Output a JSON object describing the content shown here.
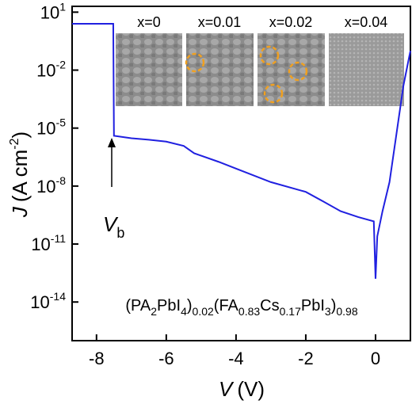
{
  "chart_data": {
    "type": "line",
    "x": [
      -8.7,
      -7.52,
      -7.5,
      -7.0,
      -6.5,
      -6.0,
      -5.5,
      -5.2,
      -4.5,
      -4.0,
      -3.0,
      -2.0,
      -1.5,
      -1.0,
      -0.5,
      -0.05,
      0.0,
      0.05,
      0.2,
      0.4,
      0.6,
      0.8,
      1.0
    ],
    "values": [
      2.5,
      2.5,
      4e-06,
      3e-06,
      2.5e-06,
      2e-06,
      1.2e-06,
      5e-07,
      1.8e-07,
      8e-08,
      1.6e-08,
      5e-09,
      1.6e-09,
      5e-10,
      2.5e-10,
      1.5e-10,
      1.6e-13,
      2.5e-11,
      5e-10,
      1.6e-08,
      5e-06,
      0.0016,
      0.1
    ],
    "color": "#2020e0",
    "log_y": true,
    "xlim": [
      -8.7,
      1
    ],
    "ylim": [
      1e-16,
      20
    ],
    "xticks": [
      -8,
      -6,
      -4,
      -2,
      0
    ],
    "yticks": [
      {
        "value": 10,
        "label": "10",
        "exponent": "1"
      },
      {
        "value": 0.01,
        "label": "10",
        "exponent": "-2"
      },
      {
        "value": 1e-05,
        "label": "10",
        "exponent": "-5"
      },
      {
        "value": 1e-08,
        "label": "10",
        "exponent": "-8"
      },
      {
        "value": 1e-11,
        "label": "10",
        "exponent": "-11"
      },
      {
        "value": 1e-14,
        "label": "10",
        "exponent": "-14"
      }
    ],
    "x_label": {
      "symbol": "V",
      "unit": "(V)"
    },
    "y_label": {
      "symbol": "J",
      "unit": "(A cm",
      "exponent": "-2",
      "close": ")"
    },
    "annotation": {
      "symbol": "V",
      "subscript": "b"
    },
    "formula": [
      "(PA",
      "2",
      "PbI",
      "4",
      ")",
      "0.02",
      "(FA",
      "0.83",
      "Cs",
      "0.17",
      "PbI",
      "3",
      ")",
      "0.98"
    ],
    "insets": [
      "x=0",
      "x=0.01",
      "x=0.02",
      "x=0.04"
    ]
  }
}
